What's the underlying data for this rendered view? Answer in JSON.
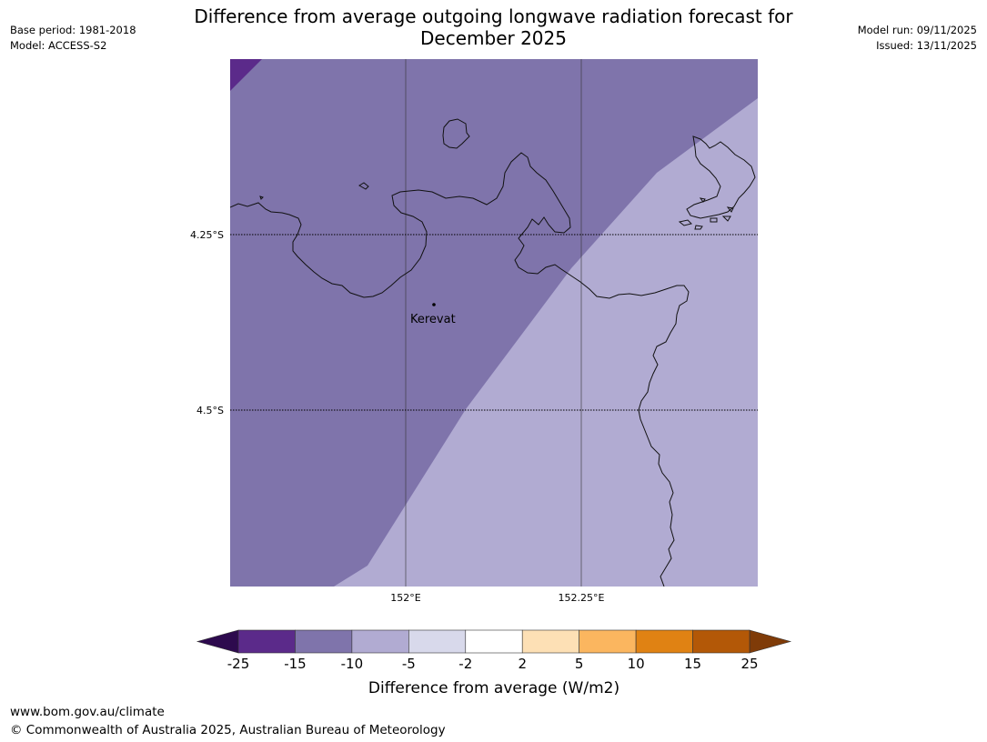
{
  "header": {
    "title_line1": "Difference from average outgoing longwave radiation forecast for",
    "title_line2": "December 2025",
    "base_period": "Base period: 1981-2018",
    "model": "Model: ACCESS-S2",
    "model_run": "Model run: 09/11/2025",
    "issued": "Issued: 13/11/2025"
  },
  "map": {
    "place_label": "Kerevat",
    "lat_labels": [
      "4.25°S",
      "4.5°S"
    ],
    "lon_labels": [
      "152°E",
      "152.25°E"
    ],
    "anomaly_colors": {
      "dark": "#5b2a8a",
      "medium": "#7f74ab",
      "light": "#b1abd2"
    }
  },
  "legend": {
    "title": "Difference from average (W/m2)",
    "ticks": [
      "-25",
      "-15",
      "-10",
      "-5",
      "-2",
      "2",
      "5",
      "10",
      "15",
      "25"
    ],
    "colors": [
      "#5b2a8a",
      "#7f74ab",
      "#b1abd2",
      "#d8d9eb",
      "#ffffff",
      "#fde0b5",
      "#fbb65f",
      "#e08213",
      "#b35807"
    ],
    "low_extend_color": "#2d0a4e",
    "high_extend_color": "#7f3b08"
  },
  "footer": {
    "url": "www.bom.gov.au/climate",
    "copyright": "© Commonwealth of Australia 2025, Australian Bureau of Meteorology"
  }
}
